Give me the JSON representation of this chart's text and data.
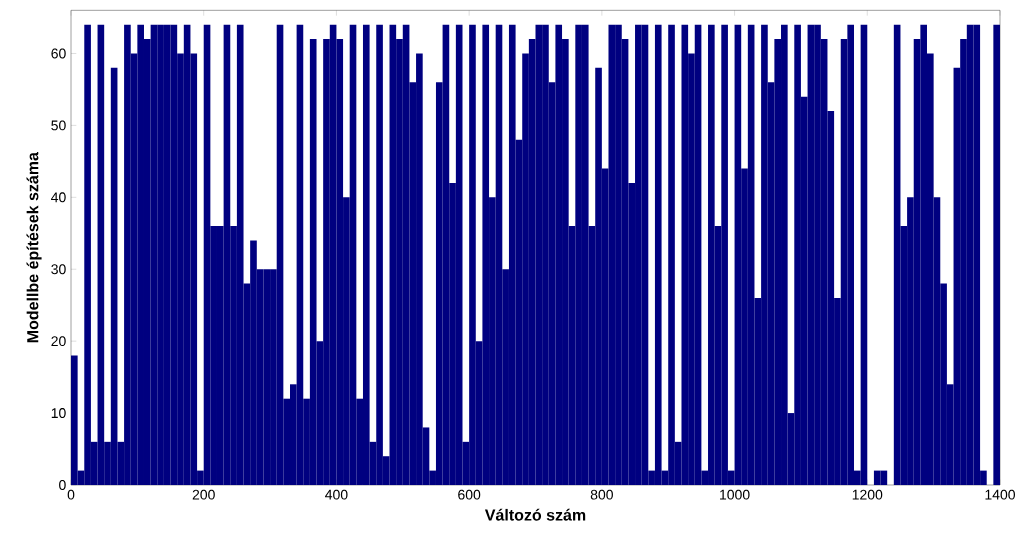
{
  "chart_data": {
    "type": "bar",
    "xlabel": "Változó szám",
    "ylabel": "Modellbe építések száma",
    "color": "#000080",
    "xlim": [
      0,
      1400
    ],
    "ylim": [
      0,
      66
    ],
    "xticks": [
      0,
      200,
      400,
      600,
      800,
      1000,
      1200,
      1400
    ],
    "yticks": [
      0,
      10,
      20,
      30,
      40,
      50,
      60
    ],
    "x": [
      5,
      15,
      25,
      35,
      45,
      55,
      65,
      75,
      85,
      95,
      105,
      115,
      125,
      135,
      145,
      155,
      165,
      175,
      185,
      195,
      205,
      215,
      225,
      235,
      245,
      255,
      265,
      275,
      285,
      295,
      305,
      315,
      325,
      335,
      345,
      355,
      365,
      375,
      385,
      395,
      405,
      415,
      425,
      435,
      445,
      455,
      465,
      475,
      485,
      495,
      505,
      515,
      525,
      535,
      545,
      555,
      565,
      575,
      585,
      595,
      605,
      615,
      625,
      635,
      645,
      655,
      665,
      675,
      685,
      695,
      705,
      715,
      725,
      735,
      745,
      755,
      765,
      775,
      785,
      795,
      805,
      815,
      825,
      835,
      845,
      855,
      865,
      875,
      885,
      895,
      905,
      915,
      925,
      935,
      945,
      955,
      965,
      975,
      985,
      995,
      1005,
      1015,
      1025,
      1035,
      1045,
      1055,
      1065,
      1075,
      1085,
      1095,
      1105,
      1115,
      1125,
      1135,
      1145,
      1155,
      1165,
      1175,
      1185,
      1195,
      1205,
      1215,
      1225,
      1235,
      1245,
      1255,
      1265,
      1275,
      1285,
      1295,
      1305,
      1315,
      1325,
      1335,
      1345,
      1355,
      1365,
      1375,
      1385,
      1395
    ],
    "values": [
      18,
      2,
      64,
      6,
      64,
      6,
      58,
      6,
      64,
      60,
      64,
      62,
      64,
      64,
      64,
      64,
      60,
      64,
      60,
      2,
      64,
      36,
      36,
      64,
      36,
      64,
      28,
      34,
      30,
      30,
      30,
      64,
      12,
      14,
      64,
      12,
      62,
      20,
      62,
      64,
      62,
      40,
      64,
      12,
      64,
      6,
      64,
      4,
      64,
      62,
      64,
      56,
      60,
      8,
      2,
      56,
      64,
      42,
      64,
      6,
      64,
      20,
      64,
      40,
      64,
      30,
      64,
      48,
      60,
      62,
      64,
      64,
      56,
      64,
      62,
      36,
      64,
      64,
      36,
      58,
      44,
      64,
      64,
      62,
      42,
      64,
      64,
      2,
      64,
      2,
      64,
      6,
      64,
      60,
      64,
      2,
      64,
      36,
      64,
      2,
      64,
      44,
      64,
      26,
      64,
      56,
      62,
      64,
      10,
      64,
      54,
      64,
      64,
      62,
      52,
      26,
      62,
      64,
      2,
      64,
      0,
      2,
      2,
      0,
      64,
      36,
      40,
      62,
      64,
      60,
      40,
      28,
      14,
      58,
      62,
      64,
      64,
      2,
      0,
      64
    ]
  }
}
